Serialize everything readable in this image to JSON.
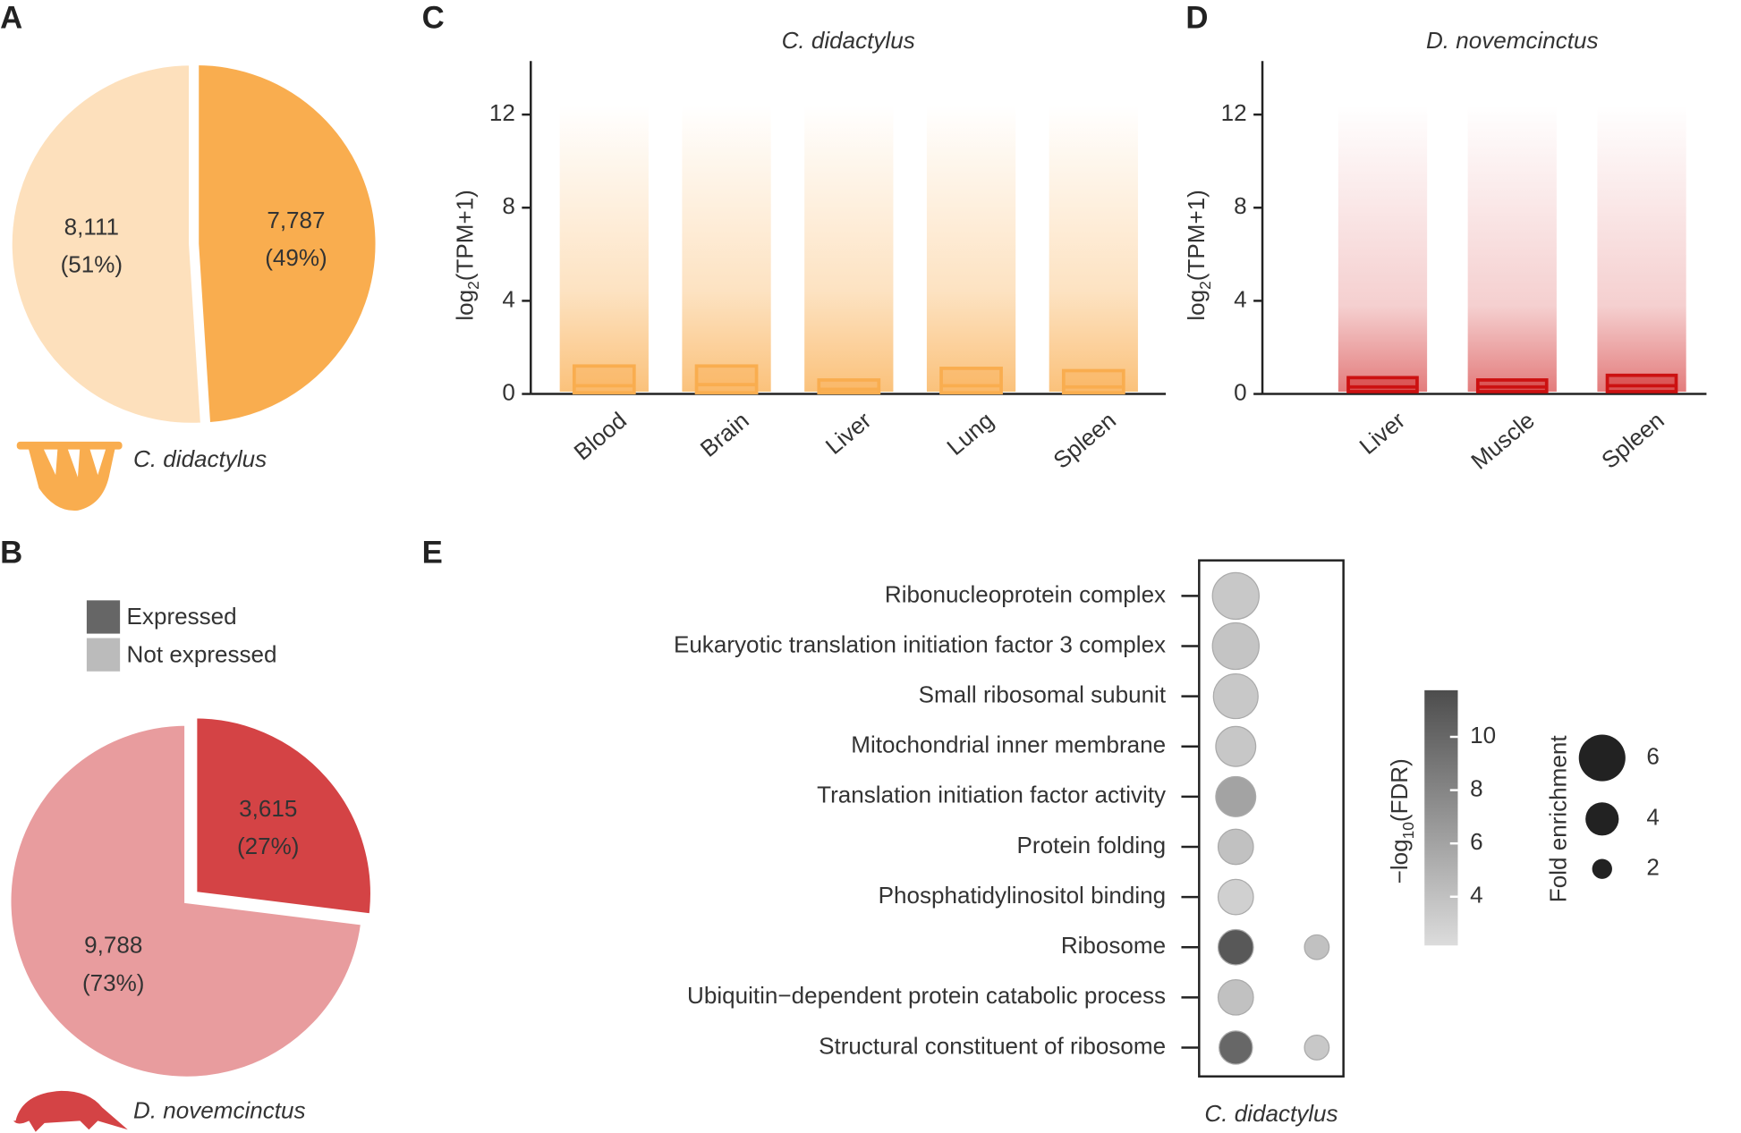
{
  "chart_data": [
    {
      "type": "pie",
      "panel": "A",
      "species": "C. didactylus",
      "categories": [
        "Expressed",
        "Not expressed"
      ],
      "values": [
        7787,
        8111
      ],
      "value_labels": [
        "7,787",
        "8,111"
      ],
      "percent_labels": [
        "(49%)",
        "(51%)"
      ],
      "colors": [
        "#f9ad4f",
        "#fde0bc"
      ]
    },
    {
      "type": "pie",
      "panel": "B",
      "species": "D. novemcinctus",
      "categories": [
        "Expressed",
        "Not expressed"
      ],
      "values": [
        3615,
        9788
      ],
      "value_labels": [
        "3,615",
        "9,788"
      ],
      "percent_labels": [
        "(27%)",
        "(73%)"
      ],
      "colors": [
        "#d44345",
        "#e89c9e"
      ],
      "legend": true,
      "legend_colors": [
        "#666666",
        "#bbbbbb"
      ]
    },
    {
      "type": "box",
      "panel": "C",
      "title": "C. didactylus",
      "ylabel": {
        "text": "log",
        "sub": "2",
        "suffix": "(TPM+1)"
      },
      "categories": [
        "Blood",
        "Brain",
        "Liver",
        "Lung",
        "Spleen"
      ],
      "q1": [
        0.05,
        0.05,
        0.05,
        0.05,
        0.05
      ],
      "median": [
        0.35,
        0.4,
        0.2,
        0.35,
        0.3
      ],
      "q3": [
        1.2,
        1.2,
        0.6,
        1.1,
        1.0
      ],
      "color": "#f9ad4f",
      "ylim": [
        0,
        14.3
      ],
      "yticks": [
        0,
        4,
        8,
        12
      ]
    },
    {
      "type": "box",
      "panel": "D",
      "title": "D. novemcinctus",
      "ylabel": {
        "text": "log",
        "sub": "2",
        "suffix": "(TPM+1)"
      },
      "categories": [
        "Liver",
        "Muscle",
        "Spleen"
      ],
      "q1": [
        0.1,
        0.1,
        0.1
      ],
      "median": [
        0.3,
        0.3,
        0.35
      ],
      "q3": [
        0.7,
        0.6,
        0.8
      ],
      "color": "#cc1111",
      "ylim": [
        0,
        14.3
      ],
      "yticks": [
        0,
        4,
        8,
        12
      ]
    },
    {
      "type": "dot",
      "panel": "E",
      "categories": [
        "Ribonucleoprotein complex",
        "Eukaryotic translation initiation factor 3 complex",
        "Small ribosomal subunit",
        "Mitochondrial inner membrane",
        "Translation initiation factor activity",
        "Protein folding",
        "Phosphatidylinositol binding",
        "Ribosome",
        "Ubiquitin−dependent protein catabolic process",
        "Structural constituent of ribosome"
      ],
      "series": [
        {
          "name": "C. didactylus",
          "values": [
            3.5,
            3.8,
            3.5,
            3.6,
            6,
            4,
            3,
            11,
            4,
            10
          ],
          "sizes": [
            6,
            6,
            5.7,
            5,
            5,
            4.3,
            4.3,
            4.3,
            4.3,
            4
          ]
        },
        {
          "name": null,
          "values": [
            null,
            null,
            null,
            null,
            null,
            null,
            null,
            4,
            null,
            3.5
          ],
          "sizes": [
            null,
            null,
            null,
            null,
            null,
            null,
            null,
            2.7,
            null,
            2.7
          ]
        }
      ],
      "colorbar": {
        "text": "−log",
        "sub": "10",
        "suffix": "(FDR)",
        "lim": [
          2.17,
          11.75
        ],
        "ticks": [
          4,
          6,
          8,
          10
        ],
        "colors": [
          "#dcdcdc",
          "#4d4d4d"
        ]
      },
      "size_legend": {
        "title": "Fold enrichment",
        "values": [
          6,
          4,
          2
        ]
      }
    }
  ]
}
